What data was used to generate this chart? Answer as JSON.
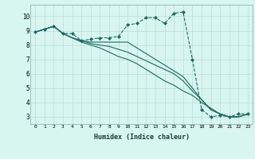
{
  "title": "",
  "xlabel": "Humidex (Indice chaleur)",
  "ylabel": "",
  "bg_color": "#d9f5f0",
  "grid_color": "#b8ddd8",
  "line_color": "#1a6b60",
  "xlim": [
    -0.5,
    23.5
  ],
  "ylim": [
    2.5,
    10.8
  ],
  "xticks": [
    0,
    1,
    2,
    3,
    4,
    5,
    6,
    7,
    8,
    9,
    10,
    11,
    12,
    13,
    14,
    15,
    16,
    17,
    18,
    19,
    20,
    21,
    22,
    23
  ],
  "yticks": [
    3,
    4,
    5,
    6,
    7,
    8,
    9,
    10
  ],
  "series1_x": [
    0,
    1,
    2,
    3,
    4,
    5,
    6,
    7,
    8,
    9,
    10,
    11,
    12,
    13,
    14,
    15,
    16,
    17,
    18,
    19,
    20,
    21,
    22,
    23
  ],
  "series1_y": [
    8.9,
    9.1,
    9.3,
    8.8,
    8.8,
    8.3,
    8.4,
    8.5,
    8.5,
    8.6,
    9.4,
    9.5,
    9.9,
    9.9,
    9.5,
    10.2,
    10.3,
    7.0,
    3.5,
    3.0,
    3.1,
    3.0,
    3.2,
    3.2
  ],
  "series2_x": [
    0,
    1,
    2,
    3,
    4,
    5,
    6,
    7,
    8,
    9,
    10,
    11,
    12,
    13,
    14,
    15,
    16,
    17,
    18,
    19,
    20,
    21,
    22,
    23
  ],
  "series2_y": [
    8.9,
    9.1,
    9.3,
    8.8,
    8.5,
    8.3,
    8.2,
    8.2,
    8.2,
    8.2,
    8.2,
    7.8,
    7.4,
    7.0,
    6.6,
    6.2,
    5.8,
    5.0,
    4.2,
    3.5,
    3.2,
    3.0,
    3.0,
    3.2
  ],
  "series3_x": [
    0,
    1,
    2,
    3,
    4,
    5,
    6,
    7,
    8,
    9,
    10,
    11,
    12,
    13,
    14,
    15,
    16,
    17,
    18,
    19,
    20,
    21,
    22,
    23
  ],
  "series3_y": [
    8.9,
    9.1,
    9.3,
    8.8,
    8.5,
    8.3,
    8.1,
    8.0,
    7.9,
    7.7,
    7.5,
    7.2,
    6.9,
    6.6,
    6.3,
    6.0,
    5.5,
    4.8,
    4.2,
    3.5,
    3.2,
    3.0,
    3.0,
    3.2
  ],
  "series4_x": [
    0,
    1,
    2,
    3,
    4,
    5,
    6,
    7,
    8,
    9,
    10,
    11,
    12,
    13,
    14,
    15,
    16,
    17,
    18,
    19,
    20,
    21,
    22,
    23
  ],
  "series4_y": [
    8.9,
    9.1,
    9.3,
    8.8,
    8.5,
    8.2,
    8.0,
    7.8,
    7.5,
    7.2,
    7.0,
    6.7,
    6.3,
    5.9,
    5.5,
    5.2,
    4.8,
    4.5,
    4.0,
    3.6,
    3.2,
    3.0,
    3.0,
    3.2
  ]
}
